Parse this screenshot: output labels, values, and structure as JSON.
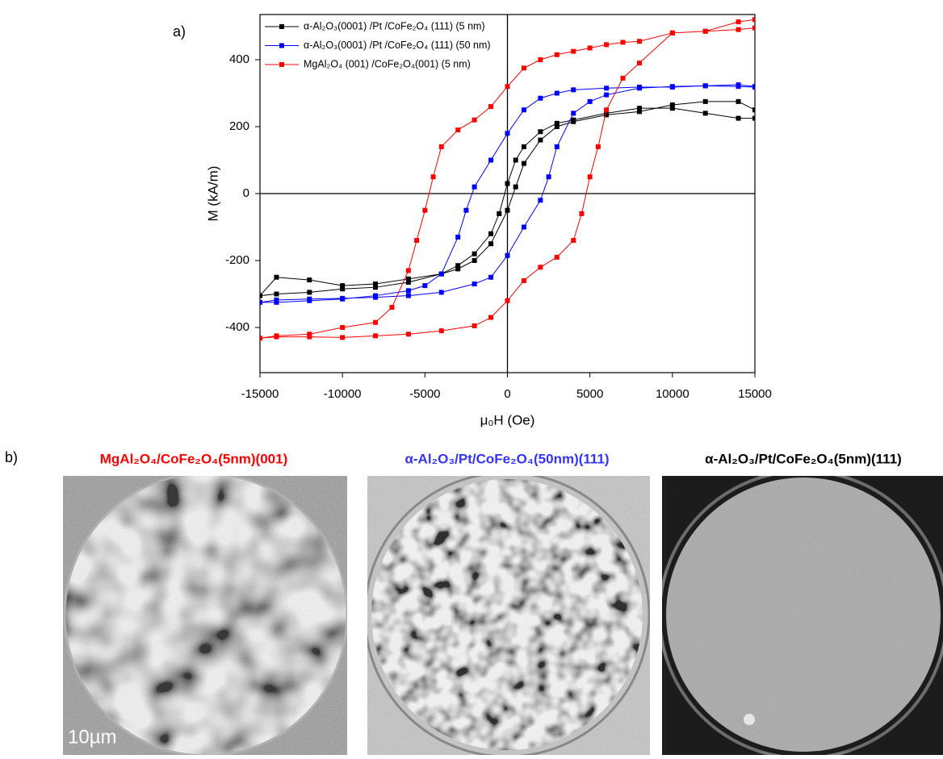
{
  "label_a": "a)",
  "chart_data": {
    "type": "line",
    "xlabel": "μ₀H (Oe)",
    "ylabel": "M (kA/m)",
    "xlim": [
      -15000,
      15000
    ],
    "ylim": [
      -535,
      535
    ],
    "xticks": [
      -15000,
      -10000,
      -5000,
      0,
      5000,
      10000,
      15000
    ],
    "yticks": [
      -400,
      -200,
      0,
      200,
      400
    ],
    "zero_lines": true,
    "markers": true,
    "legend": "upper left",
    "series": [
      {
        "name": "α-Al₂O₃(0001) /Pt /CoFe₂O₄ (111) (5 nm)",
        "color": "#000000",
        "x": [
          15000,
          14000,
          12000,
          10000,
          8000,
          6000,
          4000,
          3000,
          2000,
          1000,
          500,
          0,
          -500,
          -1000,
          -2000,
          -3000,
          -4000,
          -6000,
          -8000,
          -10000,
          -12000,
          -14000,
          -15000,
          -14000,
          -12000,
          -10000,
          -8000,
          -6000,
          -4000,
          -3000,
          -2000,
          -1000,
          0,
          500,
          1000,
          2000,
          3000,
          4000,
          6000,
          8000,
          10000,
          12000,
          14000,
          15000
        ],
        "values": [
          225,
          225,
          240,
          255,
          255,
          240,
          220,
          210,
          185,
          140,
          100,
          30,
          -60,
          -120,
          -180,
          -215,
          -240,
          -265,
          -280,
          -285,
          -295,
          -300,
          -305,
          -250,
          -258,
          -275,
          -270,
          -255,
          -240,
          -225,
          -200,
          -150,
          -50,
          20,
          90,
          160,
          200,
          215,
          235,
          245,
          265,
          275,
          275,
          250
        ]
      },
      {
        "name": "α-Al₂O₃(0001) /Pt /CoFe₂O₄ (111) (50 nm)",
        "color": "#0000ff",
        "x": [
          15000,
          14000,
          12000,
          10000,
          8000,
          6000,
          4000,
          3000,
          2000,
          1000,
          0,
          -1000,
          -2000,
          -2500,
          -3000,
          -4000,
          -5000,
          -6000,
          -8000,
          -10000,
          -12000,
          -14000,
          -15000,
          -14000,
          -12000,
          -10000,
          -8000,
          -6000,
          -4000,
          -2000,
          -1000,
          0,
          1000,
          2000,
          2500,
          3000,
          4000,
          5000,
          6000,
          8000,
          10000,
          12000,
          14000,
          15000
        ],
        "values": [
          320,
          325,
          322,
          318,
          318,
          315,
          310,
          300,
          285,
          250,
          180,
          100,
          20,
          -50,
          -130,
          -240,
          -275,
          -290,
          -305,
          -315,
          -320,
          -325,
          -325,
          -318,
          -315,
          -313,
          -310,
          -305,
          -295,
          -270,
          -250,
          -185,
          -100,
          -20,
          50,
          140,
          240,
          275,
          295,
          315,
          320,
          322,
          320,
          318
        ]
      },
      {
        "name": "MgAl₂O₄ (001) /CoFe₂O₄(001) (5 nm)",
        "color": "#ff0000",
        "x": [
          15000,
          14000,
          12000,
          10000,
          8000,
          7000,
          6000,
          5000,
          4000,
          3000,
          2000,
          1000,
          0,
          -1000,
          -2000,
          -3000,
          -4000,
          -4500,
          -5000,
          -5500,
          -6000,
          -7000,
          -8000,
          -10000,
          -12000,
          -14000,
          -15000,
          -14000,
          -12000,
          -10000,
          -8000,
          -6000,
          -4000,
          -2000,
          -1000,
          0,
          1000,
          2000,
          3000,
          4000,
          4500,
          5000,
          5500,
          6000,
          7000,
          8000,
          10000,
          12000,
          14000,
          15000
        ],
        "values": [
          495,
          490,
          485,
          480,
          455,
          452,
          445,
          435,
          425,
          415,
          400,
          375,
          320,
          260,
          220,
          190,
          140,
          50,
          -50,
          -140,
          -230,
          -340,
          -385,
          -400,
          -420,
          -425,
          -432,
          -428,
          -428,
          -430,
          -425,
          -420,
          -410,
          -395,
          -370,
          -320,
          -260,
          -220,
          -190,
          -140,
          -60,
          50,
          140,
          250,
          345,
          390,
          480,
          485,
          513,
          520
        ]
      }
    ]
  },
  "images": {
    "label": "b)",
    "panels": [
      {
        "title": "MgAl₂O₄/CoFe₂O₄(5nm)(001)"
      },
      {
        "title": "α-Al₂O₃/Pt/CoFe₂O₄(50nm)(111)"
      },
      {
        "title": "α-Al₂O₃/Pt/CoFe₂O₄(5nm)(111)"
      }
    ],
    "scale_bar": "10µm"
  }
}
